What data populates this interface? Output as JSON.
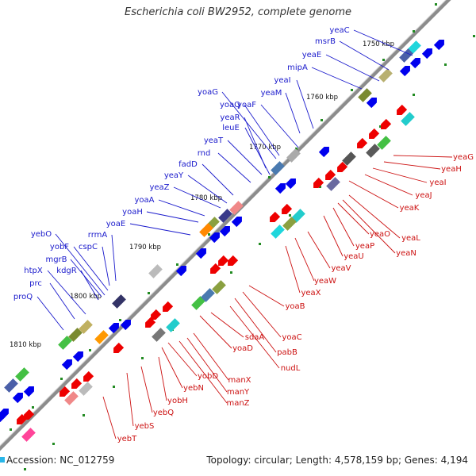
{
  "title": "Escherichia coli BW2952, complete genome",
  "footer": {
    "accession": "Accession: NC_012759",
    "summary": "Topology: circular; Length: 4,578,159 bp; Genes: 4,194"
  },
  "colors": {
    "backbone": "#8c8c8c",
    "forward_cds": "#0000ee",
    "reverse_cds": "#ee0000",
    "forward_label": "#1a1acc",
    "reverse_label": "#cc1111",
    "tick_mark": "#228b22"
  },
  "ticks": [
    {
      "label": "1750 kbp"
    },
    {
      "label": "1760 kbp"
    },
    {
      "label": "1770 kbp"
    },
    {
      "label": "1780 kbp"
    },
    {
      "label": "1790 kbp"
    },
    {
      "label": "1800 kbp"
    },
    {
      "label": "1810 kbp"
    }
  ],
  "forward_genes": [
    "yeaC",
    "msrB",
    "yeaE",
    "mipA",
    "yeaI",
    "yeaM",
    "yoaG",
    "yoaQ",
    "yoaF",
    "yeaR",
    "leuE",
    "yeaT",
    "rnd",
    "fadD",
    "yeaY",
    "yeaZ",
    "yoaA",
    "yoaH",
    "yoaE",
    "yebO",
    "yobF",
    "cspC",
    "rrmA",
    "mgrB",
    "kdgR",
    "htpX",
    "prc",
    "proQ"
  ],
  "reverse_genes": [
    "yeaG",
    "yeaH",
    "yeaI",
    "yeaJ",
    "yeaK",
    "yeaL",
    "yeaN",
    "yeaO",
    "yeaP",
    "yeaU",
    "yeaV",
    "yeaW",
    "yeaX",
    "yoaB",
    "yoaC",
    "pabB",
    "nudL",
    "sdaA",
    "yoaD",
    "manX",
    "manY",
    "manZ",
    "yobD",
    "yebN",
    "yobH",
    "yebQ",
    "yebS",
    "yebT"
  ]
}
